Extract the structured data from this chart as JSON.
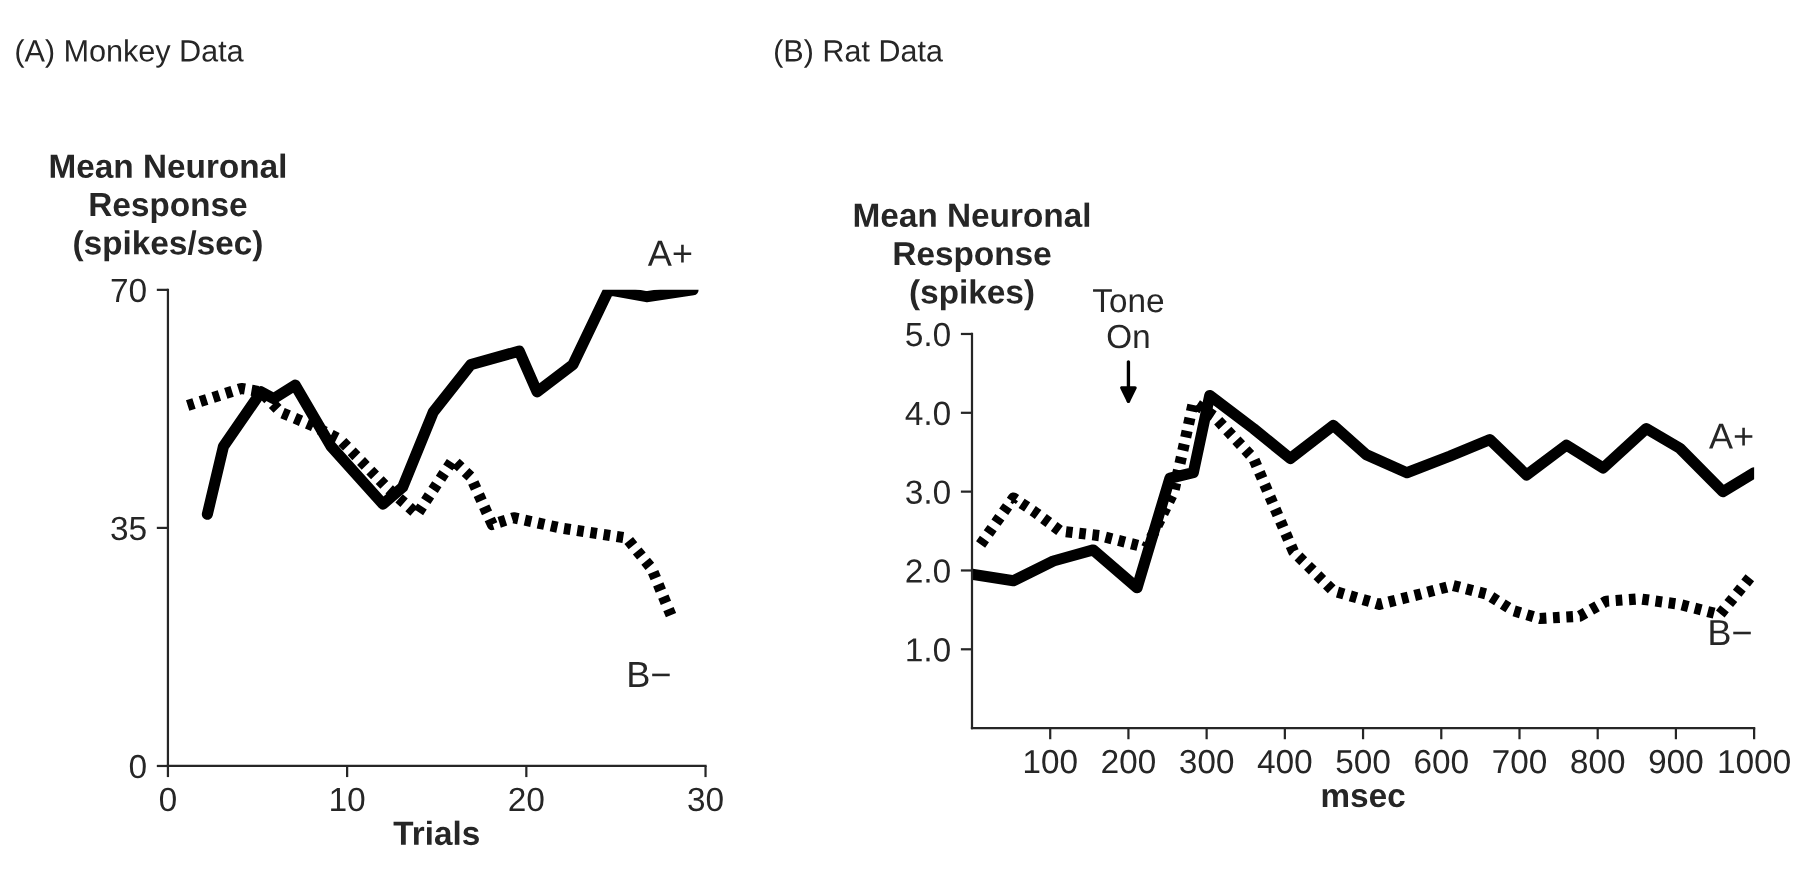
{
  "chart_data": [
    {
      "type": "line",
      "title": "(A) Monkey Data",
      "ylabel": "Mean Neuronal\nResponse\n(spikes/sec)",
      "xlabel": "Trials",
      "xlim": [
        0,
        30
      ],
      "xticks": [
        0,
        10,
        20,
        30
      ],
      "ylim": [
        0,
        70
      ],
      "yticks": [
        0,
        35,
        70
      ],
      "grid": false,
      "legend": false,
      "series": [
        {
          "name": "A+",
          "color": "#000000",
          "line_style": "solid",
          "x": [
            2.2,
            3.1,
            5.2,
            5.9,
            7.1,
            9.1,
            12.0,
            13.1,
            14.8,
            16.9,
            19.6,
            20.6,
            22.6,
            24.6,
            26.7,
            29.3
          ],
          "values": [
            37,
            47,
            55,
            54,
            56,
            47,
            38.5,
            41,
            52,
            59,
            61,
            55,
            59,
            70,
            69,
            70
          ]
        },
        {
          "name": "B−",
          "color": "#000000",
          "line_style": "dotted",
          "x": [
            1.1,
            4.1,
            5.2,
            6.3,
            8.1,
            9.6,
            12.2,
            13.9,
            15.9,
            16.9,
            18.1,
            19.3,
            21.9,
            25.6,
            27.0,
            28.1
          ],
          "values": [
            53,
            55.5,
            55,
            52,
            50,
            48,
            41,
            37,
            45,
            42.5,
            35.5,
            36.5,
            35,
            33.5,
            29,
            22
          ]
        }
      ]
    },
    {
      "type": "line",
      "title": "(B) Rat Data",
      "ylabel": "Mean Neuronal\nResponse\n(spikes)",
      "xlabel": "msec",
      "xlim": [
        0,
        1000
      ],
      "xticks": [
        100,
        200,
        300,
        400,
        500,
        600,
        700,
        800,
        900,
        1000
      ],
      "ylim": [
        0,
        5
      ],
      "yticks": [
        {
          "value": 1,
          "label": "1.0"
        },
        {
          "value": 2,
          "label": "2.0"
        },
        {
          "value": 3,
          "label": "3.0"
        },
        {
          "value": 4,
          "label": "4.0"
        },
        {
          "value": 5,
          "label": "5.0"
        }
      ],
      "grid": false,
      "legend": false,
      "annotations": [
        "Tone\nOn"
      ],
      "series": [
        {
          "name": "A+",
          "color": "#000000",
          "line_style": "solid",
          "x": [
            2,
            53,
            104,
            155,
            211,
            253,
            283,
            304,
            360,
            407,
            462,
            504,
            556,
            611,
            662,
            709,
            760,
            807,
            862,
            905,
            960,
            1000
          ],
          "values": [
            1.95,
            1.87,
            2.12,
            2.26,
            1.78,
            3.17,
            3.24,
            4.22,
            3.8,
            3.42,
            3.84,
            3.47,
            3.24,
            3.45,
            3.66,
            3.21,
            3.59,
            3.3,
            3.8,
            3.55,
            3.0,
            3.24
          ]
        },
        {
          "name": "B−",
          "color": "#000000",
          "line_style": "dotted",
          "x": [
            11,
            53,
            79,
            113,
            164,
            223,
            258,
            283,
            309,
            360,
            411,
            462,
            521,
            573,
            615,
            658,
            692,
            726,
            777,
            811,
            854,
            905,
            956,
            998
          ],
          "values": [
            2.33,
            2.92,
            2.75,
            2.5,
            2.44,
            2.29,
            3.0,
            4.13,
            3.96,
            3.42,
            2.24,
            1.74,
            1.57,
            1.7,
            1.81,
            1.7,
            1.49,
            1.39,
            1.42,
            1.61,
            1.64,
            1.57,
            1.44,
            1.95
          ]
        }
      ]
    }
  ]
}
